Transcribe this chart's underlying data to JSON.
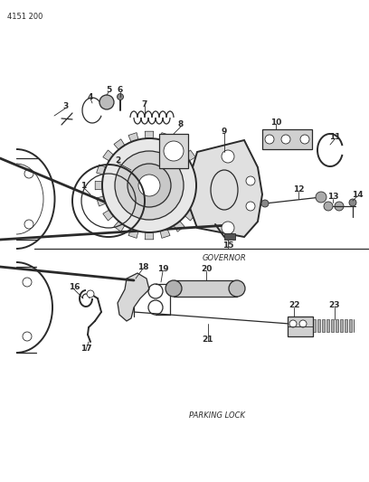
{
  "title_code": "4151 200",
  "bg_color": "#ffffff",
  "line_color": "#2a2a2a",
  "text_color": "#2a2a2a",
  "governor_label": "GOVERNOR",
  "parking_label": "PARKING LOCK",
  "fig_w": 4.08,
  "fig_h": 5.33,
  "dpi": 100
}
